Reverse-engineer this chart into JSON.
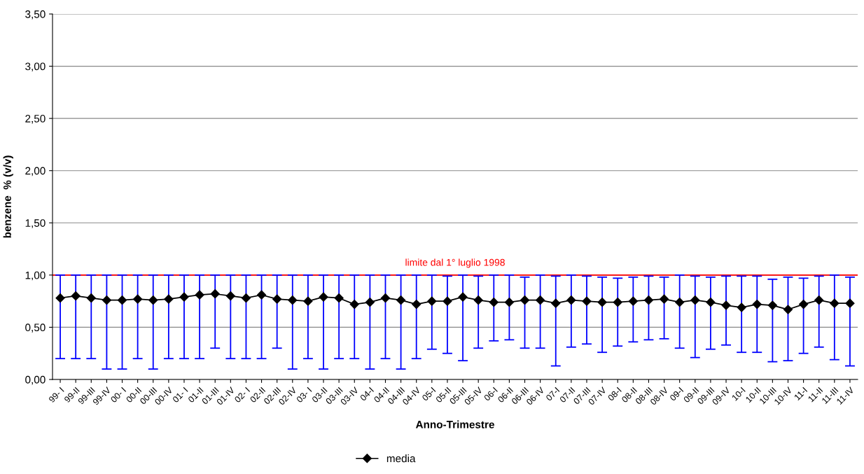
{
  "chart_data": {
    "type": "line",
    "xlabel": "Anno-Trimestre",
    "ylabel": "benzene  % (v/v)",
    "categories": [
      "99- I",
      "99-II",
      "99-III",
      "99-IV",
      "00- I",
      "00-II",
      "00-III",
      "00-IV",
      "01- I",
      "01-II",
      "01-III",
      "01-IV",
      "02- I",
      "02-II",
      "02-III",
      "02-IV",
      "03- I",
      "03-II",
      "03-III",
      "03-IV",
      "04-I",
      "04-II",
      "04-III",
      "04-IV",
      "05-I",
      "05-II",
      "05-III",
      "05-IV",
      "06-I",
      "06-II",
      "06-III",
      "06-IV",
      "07-I",
      "07-II",
      "07-III",
      "07-IV",
      "08-I",
      "08-II",
      "08-III",
      "08-IV",
      "09-I",
      "09-II",
      "09-III",
      "09-IV",
      "10-I",
      "10-II",
      "10-III",
      "10-IV",
      "11-I",
      "11-II",
      "11-III",
      "11-IV"
    ],
    "series": [
      {
        "name": "media",
        "color": "#000000",
        "values": [
          0.78,
          0.8,
          0.78,
          0.76,
          0.76,
          0.77,
          0.76,
          0.77,
          0.79,
          0.81,
          0.82,
          0.8,
          0.78,
          0.81,
          0.77,
          0.76,
          0.75,
          0.79,
          0.78,
          0.72,
          0.74,
          0.78,
          0.76,
          0.72,
          0.75,
          0.75,
          0.79,
          0.76,
          0.74,
          0.74,
          0.76,
          0.76,
          0.73,
          0.76,
          0.75,
          0.74,
          0.74,
          0.75,
          0.76,
          0.77,
          0.74,
          0.76,
          0.74,
          0.71,
          0.69,
          0.72,
          0.71,
          0.67,
          0.72,
          0.76,
          0.73,
          0.73
        ],
        "errors": [
          [
            0.2,
            1.0
          ],
          [
            0.2,
            1.0
          ],
          [
            0.2,
            1.0
          ],
          [
            0.1,
            1.0
          ],
          [
            0.1,
            1.0
          ],
          [
            0.2,
            1.0
          ],
          [
            0.1,
            1.0
          ],
          [
            0.2,
            1.0
          ],
          [
            0.2,
            1.0
          ],
          [
            0.2,
            1.0
          ],
          [
            0.3,
            1.0
          ],
          [
            0.2,
            1.0
          ],
          [
            0.2,
            1.0
          ],
          [
            0.2,
            1.0
          ],
          [
            0.3,
            1.0
          ],
          [
            0.1,
            1.0
          ],
          [
            0.2,
            1.0
          ],
          [
            0.1,
            1.0
          ],
          [
            0.2,
            1.0
          ],
          [
            0.2,
            1.0
          ],
          [
            0.1,
            1.0
          ],
          [
            0.2,
            1.0
          ],
          [
            0.1,
            1.0
          ],
          [
            0.2,
            1.0
          ],
          [
            0.29,
            1.0
          ],
          [
            0.25,
            0.99
          ],
          [
            0.18,
            1.0
          ],
          [
            0.3,
            0.99
          ],
          [
            0.37,
            1.0
          ],
          [
            0.38,
            1.0
          ],
          [
            0.3,
            0.98
          ],
          [
            0.3,
            1.0
          ],
          [
            0.13,
            0.99
          ],
          [
            0.31,
            1.0
          ],
          [
            0.34,
            0.99
          ],
          [
            0.26,
            0.98
          ],
          [
            0.32,
            0.97
          ],
          [
            0.36,
            0.98
          ],
          [
            0.38,
            0.99
          ],
          [
            0.39,
            0.98
          ],
          [
            0.3,
            1.0
          ],
          [
            0.21,
            0.99
          ],
          [
            0.29,
            0.98
          ],
          [
            0.33,
            0.99
          ],
          [
            0.26,
            0.99
          ],
          [
            0.26,
            0.99
          ],
          [
            0.17,
            0.96
          ],
          [
            0.18,
            0.98
          ],
          [
            0.25,
            0.97
          ],
          [
            0.31,
            0.99
          ],
          [
            0.19,
            1.0
          ],
          [
            0.13,
            0.98
          ]
        ]
      }
    ],
    "ylim": [
      0,
      3.5
    ],
    "yticks": [
      {
        "value": 0,
        "label": "0,00"
      },
      {
        "value": 0.5,
        "label": "0,50"
      },
      {
        "value": 1,
        "label": "1,00"
      },
      {
        "value": 1.5,
        "label": "1,50"
      },
      {
        "value": 2,
        "label": "2,00"
      },
      {
        "value": 2.5,
        "label": "2,50"
      },
      {
        "value": 3,
        "label": "3,00"
      },
      {
        "value": 3.5,
        "label": "3,50"
      }
    ],
    "ref_lines": [
      {
        "axis": "y",
        "value": 1,
        "label": "limite dal 1° luglio 1998",
        "color": "#ff0000"
      }
    ],
    "grid": "y",
    "legend": "bottom",
    "marker": "diamond",
    "line_style": "solid"
  }
}
